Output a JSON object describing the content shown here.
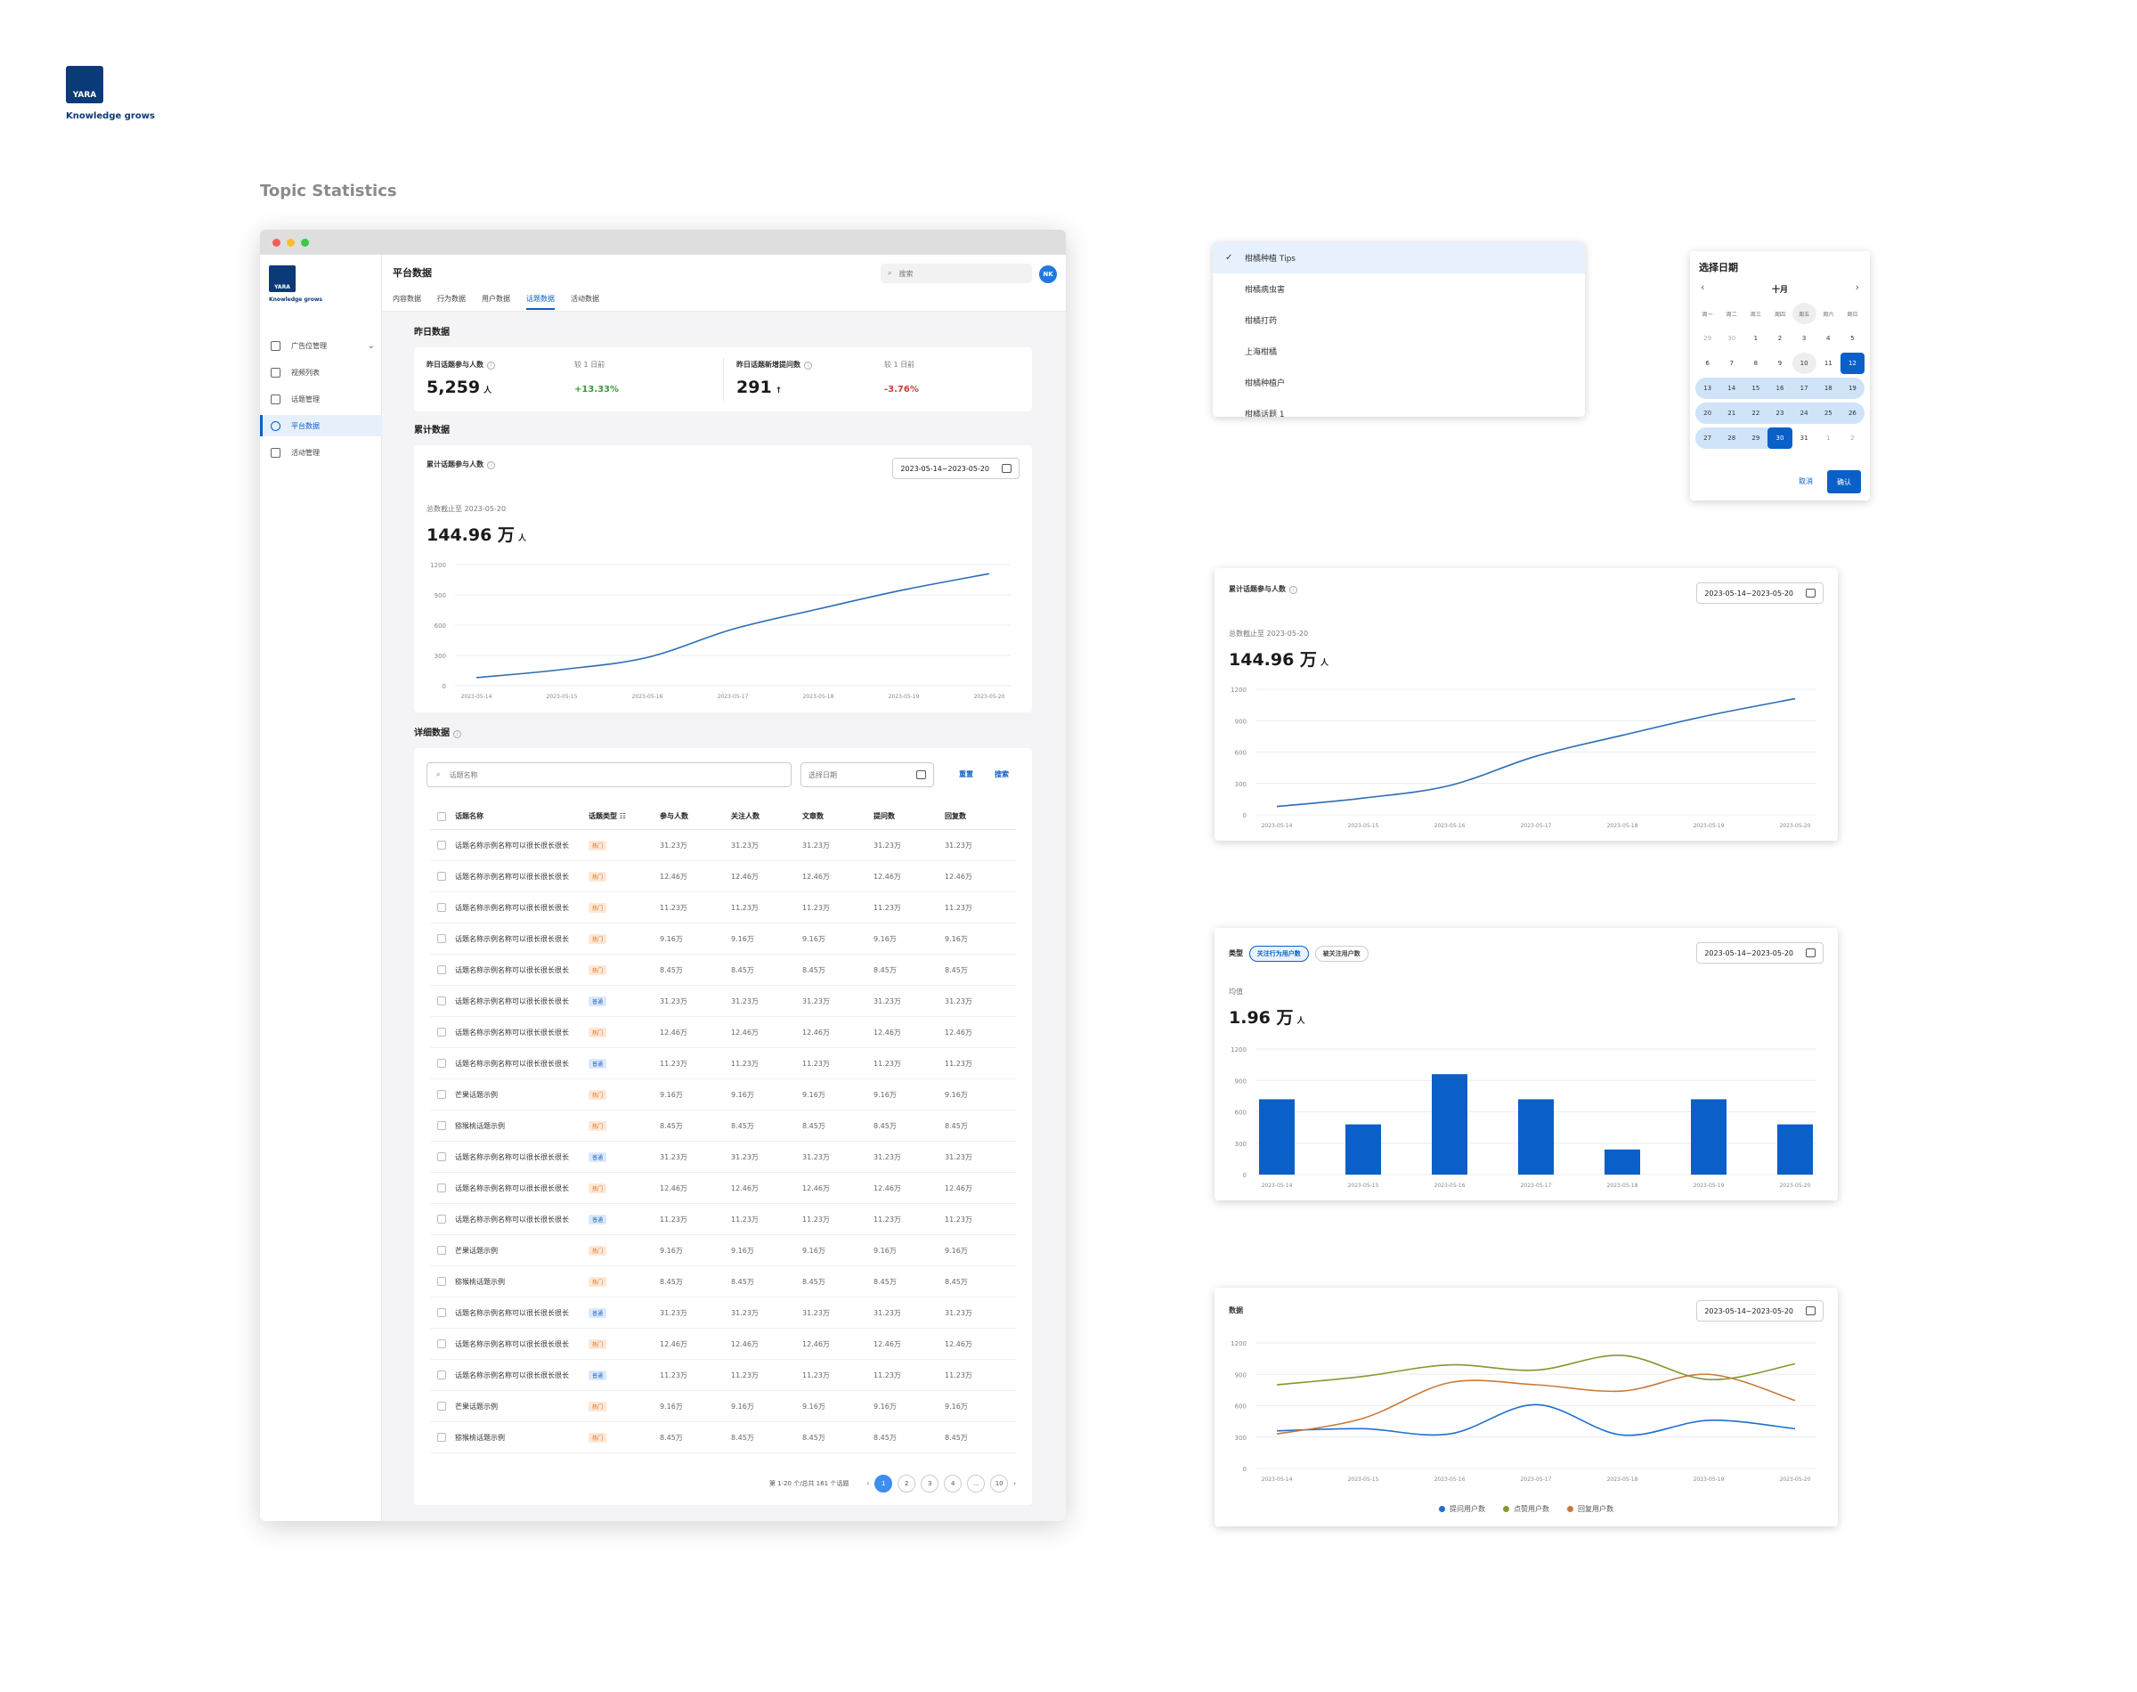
{
  "brand": {
    "logo_text": "YARA",
    "tagline": "Knowledge grows"
  },
  "section_title": "Topic Statistics",
  "app": {
    "sidebar": {
      "logo_text": "YARA",
      "tagline": "Knowledge grows",
      "items": [
        {
          "label": "广告位管理",
          "icon": "folder-icon"
        },
        {
          "label": "视频列表",
          "icon": "video-icon"
        },
        {
          "label": "话题管理",
          "icon": "grid-icon"
        },
        {
          "label": "平台数据",
          "icon": "globe-icon"
        },
        {
          "label": "活动管理",
          "icon": "gift-icon"
        }
      ]
    },
    "header": {
      "title": "平台数据",
      "tabs": [
        "内容数据",
        "行为数据",
        "用户数据",
        "话题数据",
        "活动数据"
      ],
      "active_tab": 3,
      "search_placeholder": "搜索",
      "avatar": "NK"
    },
    "yesterday": {
      "title": "昨日数据",
      "cards": [
        {
          "label": "昨日话题参与人数",
          "value": "5,259",
          "unit": "人",
          "compare_label": "较 1 日前",
          "change": "+13.33%",
          "arrow": ""
        },
        {
          "label": "昨日话题新增提问数",
          "value": "291",
          "unit": "",
          "compare_label": "较 1 日前",
          "change": "-3.76%",
          "arrow": "↑"
        }
      ]
    },
    "cumulative": {
      "title": "累计数据",
      "label": "累计话题参与人数",
      "date_range": "2023-05-14~2023-05-20",
      "total_label": "总数截止至 2023-05-20",
      "value": "144.96 万",
      "unit": "人"
    },
    "detail": {
      "title": "详细数据",
      "search_placeholder": "话题名称",
      "date_placeholder": "选择日期",
      "reset_label": "重置",
      "search_label": "搜索",
      "columns": [
        "话题名称",
        "话题类型",
        "参与人数",
        "关注人数",
        "文章数",
        "提问数",
        "回复数"
      ],
      "rows": [
        {
          "name": "话题名称示例名称可以很长很长很长",
          "type": "热门",
          "v": "31.23万"
        },
        {
          "name": "话题名称示例名称可以很长很长很长",
          "type": "热门",
          "v": "12.46万"
        },
        {
          "name": "话题名称示例名称可以很长很长很长",
          "type": "热门",
          "v": "11.23万"
        },
        {
          "name": "话题名称示例名称可以很长很长很长",
          "type": "热门",
          "v": "9.16万"
        },
        {
          "name": "话题名称示例名称可以很长很长很长",
          "type": "热门",
          "v": "8.45万"
        },
        {
          "name": "话题名称示例名称可以很长很长很长",
          "type": "普通",
          "v": "31.23万"
        },
        {
          "name": "话题名称示例名称可以很长很长很长",
          "type": "热门",
          "v": "12.46万"
        },
        {
          "name": "话题名称示例名称可以很长很长很长",
          "type": "普通",
          "v": "11.23万"
        },
        {
          "name": "芒果话题示例",
          "type": "热门",
          "v": "9.16万"
        },
        {
          "name": "猕猴桃话题示例",
          "type": "热门",
          "v": "8.45万"
        },
        {
          "name": "话题名称示例名称可以很长很长很长",
          "type": "普通",
          "v": "31.23万"
        },
        {
          "name": "话题名称示例名称可以很长很长很长",
          "type": "热门",
          "v": "12.46万"
        },
        {
          "name": "话题名称示例名称可以很长很长很长",
          "type": "普通",
          "v": "11.23万"
        },
        {
          "name": "芒果话题示例",
          "type": "热门",
          "v": "9.16万"
        },
        {
          "name": "猕猴桃话题示例",
          "type": "热门",
          "v": "8.45万"
        },
        {
          "name": "话题名称示例名称可以很长很长很长",
          "type": "普通",
          "v": "31.23万"
        },
        {
          "name": "话题名称示例名称可以很长很长很长",
          "type": "热门",
          "v": "12.46万"
        },
        {
          "name": "话题名称示例名称可以很长很长很长",
          "type": "普通",
          "v": "11.23万"
        },
        {
          "name": "芒果话题示例",
          "type": "热门",
          "v": "9.16万"
        },
        {
          "name": "猕猴桃话题示例",
          "type": "热门",
          "v": "8.45万"
        }
      ],
      "pagination": {
        "summary": "第 1-20 个/总共 161 个话题",
        "pages": [
          "1",
          "2",
          "3",
          "4",
          "...",
          "10"
        ],
        "active": 0
      }
    }
  },
  "dropdown": {
    "items": [
      "柑橘种植 Tips",
      "柑橘病虫害",
      "柑橘打药",
      "上海柑橘",
      "柑橘种植户",
      "柑橘话题 1"
    ],
    "selected": 0
  },
  "calendar": {
    "title": "选择日期",
    "month": "十月",
    "weekdays": [
      "周一",
      "周二",
      "周三",
      "周四",
      "周五",
      "周六",
      "周日"
    ],
    "weeks": [
      [
        "29",
        "30",
        "1",
        "2",
        "3",
        "4",
        "5"
      ],
      [
        "6",
        "7",
        "8",
        "9",
        "10",
        "11",
        "12"
      ],
      [
        "13",
        "14",
        "15",
        "16",
        "17",
        "18",
        "19"
      ],
      [
        "20",
        "21",
        "22",
        "23",
        "24",
        "25",
        "26"
      ],
      [
        "27",
        "28",
        "29",
        "30",
        "31",
        "1",
        "2"
      ]
    ],
    "cancel_label": "取消",
    "confirm_label": "确认"
  },
  "panel_cumulative": {
    "label": "累计话题参与人数",
    "date_range": "2023-05-14~2023-05-20",
    "total_label": "总数截止至 2023-05-20",
    "value": "144.96 万",
    "unit": "人"
  },
  "panel_bar": {
    "type_label": "类型",
    "pills": [
      "关注行为用户数",
      "被关注用户数"
    ],
    "active_pill": 0,
    "date_range": "2023-05-14~2023-05-20",
    "avg_label": "均值",
    "value": "1.96 万",
    "unit": "人"
  },
  "panel_multi": {
    "label": "数据",
    "date_range": "2023-05-14~2023-05-20"
  },
  "chart_data": [
    {
      "type": "line",
      "x": [
        "2023-05-14",
        "2023-05-15",
        "2023-05-16",
        "2023-05-17",
        "2023-05-18",
        "2023-05-19",
        "2023-05-20"
      ],
      "series": [
        {
          "values": [
            80,
            160,
            280,
            560,
            760,
            950,
            1110
          ]
        }
      ],
      "ylim": [
        0,
        1200
      ],
      "yticks": [
        0,
        300,
        600,
        900,
        1200
      ],
      "color": "#2a6db5",
      "grid": true
    },
    {
      "type": "line",
      "x": [
        "2023-05-14",
        "2023-05-15",
        "2023-05-16",
        "2023-05-17",
        "2023-05-18",
        "2023-05-19",
        "2023-05-20"
      ],
      "series": [
        {
          "values": [
            80,
            160,
            280,
            560,
            760,
            950,
            1110
          ]
        }
      ],
      "ylim": [
        0,
        1200
      ],
      "yticks": [
        0,
        300,
        600,
        900,
        1200
      ],
      "color": "#2a6db5",
      "grid": true
    },
    {
      "type": "bar",
      "categories": [
        "2023-05-14",
        "2023-05-15",
        "2023-05-16",
        "2023-05-17",
        "2023-05-18",
        "2023-05-19",
        "2023-05-20"
      ],
      "values": [
        720,
        480,
        960,
        720,
        240,
        720,
        480
      ],
      "ylim": [
        0,
        1200
      ],
      "yticks": [
        0,
        300,
        600,
        900,
        1200
      ],
      "color": "#0b5fc8",
      "grid": true
    },
    {
      "type": "line",
      "x": [
        "2023-05-14",
        "2023-05-15",
        "2023-05-16",
        "2023-05-17",
        "2023-05-18",
        "2023-05-19",
        "2023-05-20"
      ],
      "series": [
        {
          "name": "提问用户数",
          "color": "#1f6fd1",
          "values": [
            360,
            380,
            330,
            610,
            320,
            460,
            380
          ]
        },
        {
          "name": "点赞用户数",
          "color": "#7f9a2e",
          "values": [
            800,
            880,
            990,
            940,
            1080,
            850,
            1000
          ]
        },
        {
          "name": "回复用户数",
          "color": "#c87a3a",
          "values": [
            330,
            480,
            820,
            800,
            740,
            900,
            650
          ]
        }
      ],
      "ylim": [
        0,
        1200
      ],
      "yticks": [
        0,
        300,
        600,
        900,
        1200
      ],
      "legend": "bottom",
      "grid": true
    }
  ]
}
